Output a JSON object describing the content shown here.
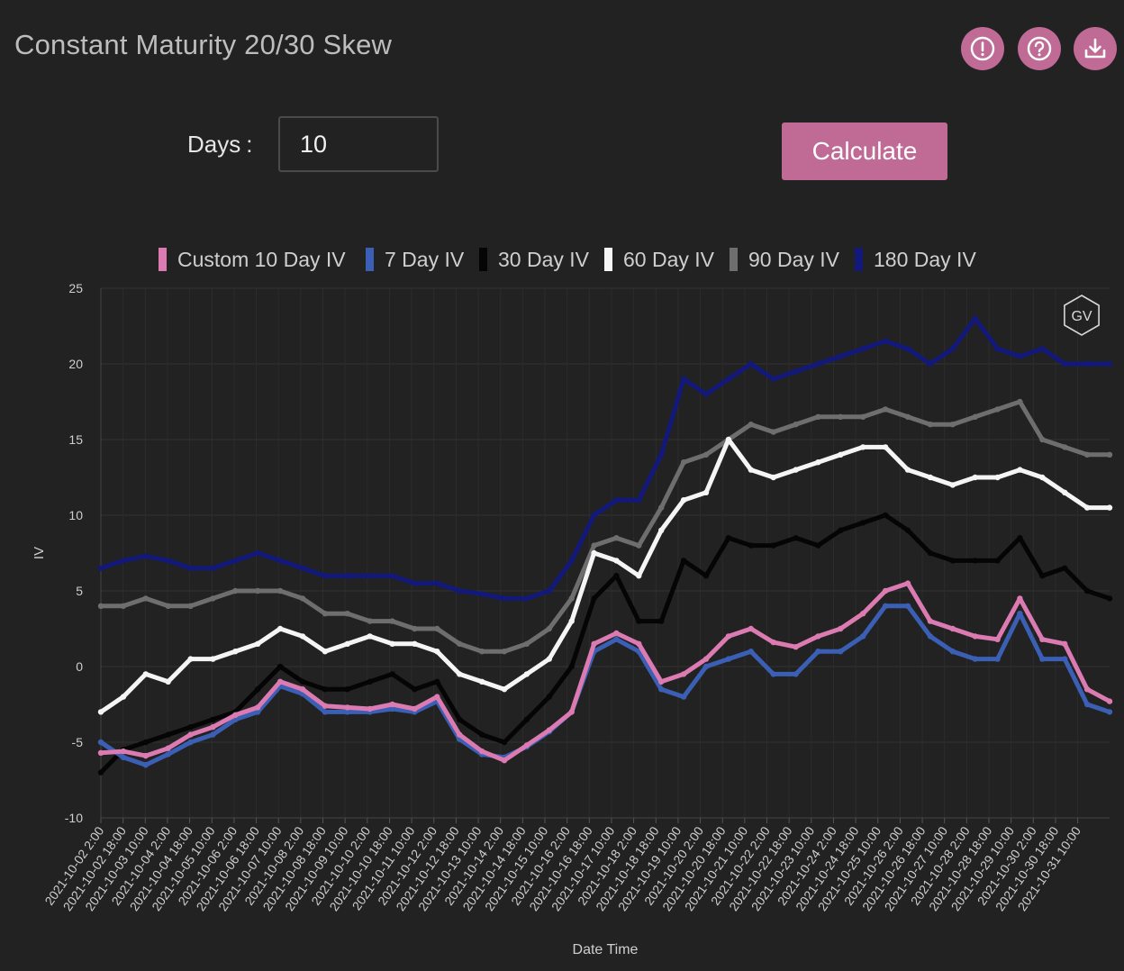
{
  "header": {
    "title": "Constant Maturity 20/30 Skew",
    "icons": [
      "alert-icon",
      "help-icon",
      "download-icon"
    ],
    "icon_color": "#c06b96"
  },
  "controls": {
    "days_label": "Days",
    "days_colon": ":",
    "days_value": "10",
    "calculate_label": "Calculate",
    "accent": "#c06b96"
  },
  "chart_data": {
    "type": "line",
    "title": "",
    "xlabel": "Date Time",
    "ylabel": "IV",
    "ylim": [
      -10,
      25
    ],
    "yticks": [
      -10,
      -5,
      0,
      5,
      10,
      15,
      20,
      25
    ],
    "grid": true,
    "legend_position": "top",
    "watermark": "GV",
    "x_tick_labels": [
      "2021-10-02 2:00",
      "2021-10-02 18:00",
      "2021-10-03 10:00",
      "2021-10-04 2:00",
      "2021-10-04 18:00",
      "2021-10-05 10:00",
      "2021-10-06 2:00",
      "2021-10-06 18:00",
      "2021-10-07 10:00",
      "2021-10-08 2:00",
      "2021-10-08 18:00",
      "2021-10-09 10:00",
      "2021-10-10 2:00",
      "2021-10-10 18:00",
      "2021-10-11 10:00",
      "2021-10-12 2:00",
      "2021-10-12 18:00",
      "2021-10-13 10:00",
      "2021-10-14 2:00",
      "2021-10-14 18:00",
      "2021-10-15 10:00",
      "2021-10-16 2:00",
      "2021-10-16 18:00",
      "2021-10-17 10:00",
      "2021-10-18 2:00",
      "2021-10-18 18:00",
      "2021-10-19 10:00",
      "2021-10-20 2:00",
      "2021-10-20 18:00",
      "2021-10-21 10:00",
      "2021-10-22 2:00",
      "2021-10-22 18:00",
      "2021-10-23 10:00",
      "2021-10-24 2:00",
      "2021-10-24 18:00",
      "2021-10-25 10:00",
      "2021-10-26 2:00",
      "2021-10-26 18:00",
      "2021-10-27 10:00",
      "2021-10-28 2:00",
      "2021-10-28 18:00",
      "2021-10-29 10:00",
      "2021-10-30 2:00",
      "2021-10-30 18:00",
      "2021-10-31 10:00"
    ],
    "series": [
      {
        "name": "Custom 10 Day IV",
        "color": "#db7bb2",
        "values": [
          -5.7,
          -5.6,
          -5.9,
          -5.4,
          -4.5,
          -4.0,
          -3.2,
          -2.7,
          -1.0,
          -1.5,
          -2.6,
          -2.7,
          -2.8,
          -2.5,
          -2.8,
          -2.0,
          -4.5,
          -5.6,
          -6.2,
          -5.2,
          -4.2,
          -3.0,
          1.5,
          2.2,
          1.5,
          -1.0,
          -0.5,
          0.5,
          2.0,
          2.5,
          1.6,
          1.3,
          2.0,
          2.5,
          3.5,
          5.0,
          5.5,
          3.0,
          2.5,
          2.0,
          1.8,
          4.5,
          1.8,
          1.5,
          -1.5,
          -2.3
        ]
      },
      {
        "name": "7 Day IV",
        "color": "#3b5fb5",
        "values": [
          -5.0,
          -6.0,
          -6.5,
          -5.8,
          -5.0,
          -4.5,
          -3.5,
          -3.0,
          -1.3,
          -1.8,
          -3.0,
          -3.0,
          -3.0,
          -2.8,
          -3.0,
          -2.3,
          -4.8,
          -5.8,
          -6.0,
          -5.3,
          -4.3,
          -3.0,
          1.0,
          1.8,
          1.0,
          -1.5,
          -2.0,
          0.0,
          0.5,
          1.0,
          -0.5,
          -0.5,
          1.0,
          1.0,
          2.0,
          4.0,
          4.0,
          2.0,
          1.0,
          0.5,
          0.5,
          3.5,
          0.5,
          0.5,
          -2.5,
          -3.0
        ]
      },
      {
        "name": "30 Day IV",
        "color": "#050505",
        "values": [
          -7.0,
          -5.5,
          -5.0,
          -4.5,
          -4.0,
          -3.5,
          -3.0,
          -1.5,
          0.0,
          -1.0,
          -1.5,
          -1.5,
          -1.0,
          -0.5,
          -1.5,
          -1.0,
          -3.5,
          -4.5,
          -5.0,
          -3.5,
          -2.0,
          0.0,
          4.5,
          6.0,
          3.0,
          3.0,
          7.0,
          6.0,
          8.5,
          8.0,
          8.0,
          8.5,
          8.0,
          9.0,
          9.5,
          10.0,
          9.0,
          7.5,
          7.0,
          7.0,
          7.0,
          8.5,
          6.0,
          6.5,
          5.0,
          4.5
        ]
      },
      {
        "name": "60 Day IV",
        "color": "#f5f5f5",
        "values": [
          -3.0,
          -2.0,
          -0.5,
          -1.0,
          0.5,
          0.5,
          1.0,
          1.5,
          2.5,
          2.0,
          1.0,
          1.5,
          2.0,
          1.5,
          1.5,
          1.0,
          -0.5,
          -1.0,
          -1.5,
          -0.5,
          0.5,
          3.0,
          7.5,
          7.0,
          6.0,
          9.0,
          11.0,
          11.5,
          15.0,
          13.0,
          12.5,
          13.0,
          13.5,
          14.0,
          14.5,
          14.5,
          13.0,
          12.5,
          12.0,
          12.5,
          12.5,
          13.0,
          12.5,
          11.5,
          10.5,
          10.5
        ]
      },
      {
        "name": "90 Day IV",
        "color": "#6e6e6e",
        "values": [
          4.0,
          4.0,
          4.5,
          4.0,
          4.0,
          4.5,
          5.0,
          5.0,
          5.0,
          4.5,
          3.5,
          3.5,
          3.0,
          3.0,
          2.5,
          2.5,
          1.5,
          1.0,
          1.0,
          1.5,
          2.5,
          4.5,
          8.0,
          8.5,
          8.0,
          10.5,
          13.5,
          14.0,
          15.0,
          16.0,
          15.5,
          16.0,
          16.5,
          16.5,
          16.5,
          17.0,
          16.5,
          16.0,
          16.0,
          16.5,
          17.0,
          17.5,
          15.0,
          14.5,
          14.0,
          14.0
        ]
      },
      {
        "name": "180 Day IV",
        "color": "#13197a",
        "values": [
          6.5,
          7.0,
          7.3,
          7.0,
          6.5,
          6.5,
          7.0,
          7.5,
          7.0,
          6.5,
          6.0,
          6.0,
          6.0,
          6.0,
          5.5,
          5.5,
          5.0,
          4.8,
          4.5,
          4.5,
          5.0,
          7.0,
          10.0,
          11.0,
          11.0,
          14.0,
          19.0,
          18.0,
          19.0,
          20.0,
          19.0,
          19.5,
          20.0,
          20.5,
          21.0,
          21.5,
          21.0,
          20.0,
          21.0,
          23.0,
          21.0,
          20.5,
          21.0,
          20.0,
          20.0,
          20.0
        ]
      }
    ]
  }
}
